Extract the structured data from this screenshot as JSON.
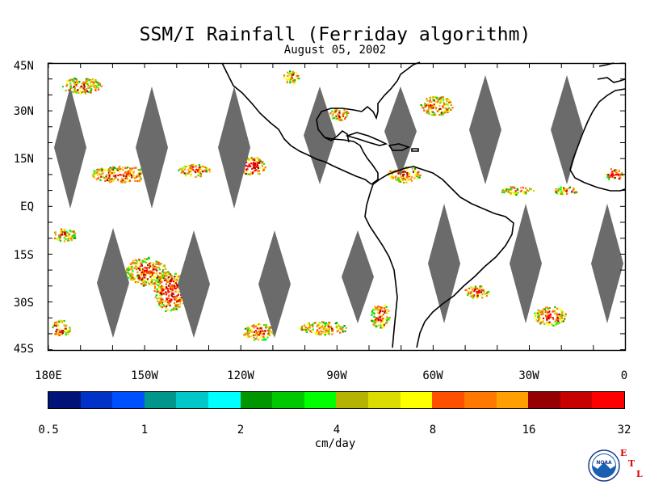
{
  "title": "SSM/I Rainfall (Ferriday algorithm)",
  "subtitle": "August 05, 2002",
  "lat_labels": [
    "45N",
    "30N",
    "15N",
    "EQ",
    "15S",
    "30S",
    "45S"
  ],
  "lon_labels": [
    "180E",
    "150W",
    "120W",
    "90W",
    "60W",
    "30W",
    "0"
  ],
  "colorbar": {
    "colors": [
      "#001478",
      "#0032c8",
      "#0050ff",
      "#00968c",
      "#00c8c8",
      "#00ffff",
      "#009600",
      "#00c800",
      "#00ff00",
      "#b4b400",
      "#dcdc00",
      "#ffff00",
      "#ff5000",
      "#ff7800",
      "#ffa000",
      "#960000",
      "#c80000",
      "#ff0000"
    ],
    "tick_labels": [
      "0.5",
      "1",
      "2",
      "4",
      "8",
      "16",
      "32"
    ],
    "units": "cm/day"
  },
  "logo": {
    "text": "NOAA",
    "letters": [
      "E",
      "T",
      "L"
    ]
  },
  "colors": {
    "no_data_swath": "#6b6b6b",
    "coastline": "#000000",
    "background": "#ffffff"
  }
}
